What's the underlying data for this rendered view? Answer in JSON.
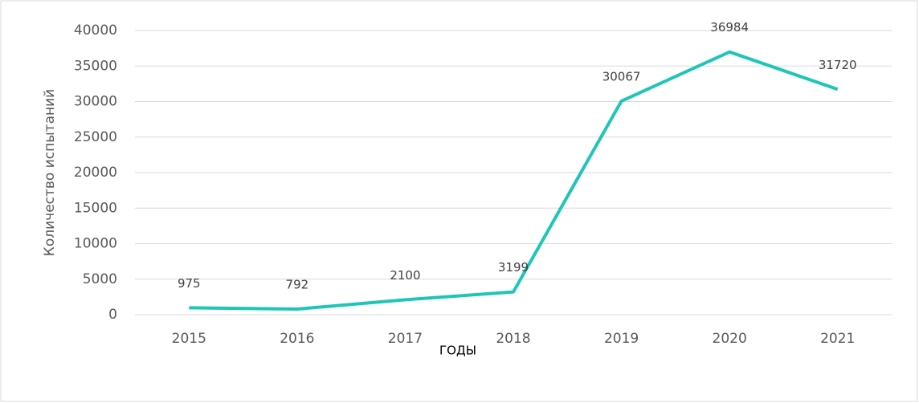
{
  "chart_data": {
    "type": "line",
    "x_label": "ГОДЫ",
    "y_label": "Количество испытаний",
    "categories": [
      "2015",
      "2016",
      "2017",
      "2018",
      "2019",
      "2020",
      "2021"
    ],
    "values": [
      975,
      792,
      2100,
      3199,
      30067,
      36984,
      31720
    ],
    "color": "#1fc5b8",
    "ylim": [
      0,
      40000
    ],
    "yticks": [
      0,
      5000,
      10000,
      15000,
      20000,
      25000,
      30000,
      35000,
      40000
    ],
    "grid": true
  }
}
